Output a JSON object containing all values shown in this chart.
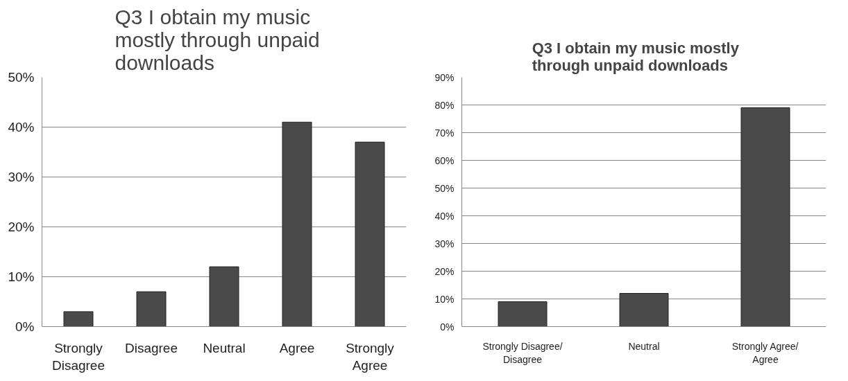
{
  "chart_data": [
    {
      "type": "bar",
      "title": "Q3     I obtain my music mostly through unpaid downloads",
      "categories": [
        "Strongly Disagree",
        "Disagree",
        "Neutral",
        "Agree",
        "Strongly Agree"
      ],
      "values": [
        3,
        7,
        12,
        41,
        37
      ],
      "color": "#4a4a4a",
      "ylim": [
        0,
        50
      ],
      "yticks": [
        {
          "value": 0,
          "label": "0%"
        },
        {
          "value": 10,
          "label": "10%"
        },
        {
          "value": 20,
          "label": "20%"
        },
        {
          "value": 30,
          "label": "30%"
        },
        {
          "value": 40,
          "label": "40%"
        },
        {
          "value": 50,
          "label": "50%"
        }
      ],
      "grid": "y"
    },
    {
      "type": "bar",
      "title": "Q3     I obtain my music mostly through unpaid downloads",
      "categories": [
        "Strongly Disagree/ Disagree",
        "Neutral",
        "Strongly Agree/ Agree"
      ],
      "values": [
        9,
        12,
        79
      ],
      "color": "#4a4a4a",
      "ylim": [
        0,
        90
      ],
      "yticks": [
        {
          "value": 0,
          "label": "0%"
        },
        {
          "value": 10,
          "label": "10%"
        },
        {
          "value": 20,
          "label": "20%"
        },
        {
          "value": 30,
          "label": "30%"
        },
        {
          "value": 40,
          "label": "40%"
        },
        {
          "value": 50,
          "label": "50%"
        },
        {
          "value": 60,
          "label": "60%"
        },
        {
          "value": 70,
          "label": "70%"
        },
        {
          "value": 80,
          "label": "80%"
        },
        {
          "value": 90,
          "label": "90%"
        }
      ],
      "grid": "y"
    }
  ]
}
